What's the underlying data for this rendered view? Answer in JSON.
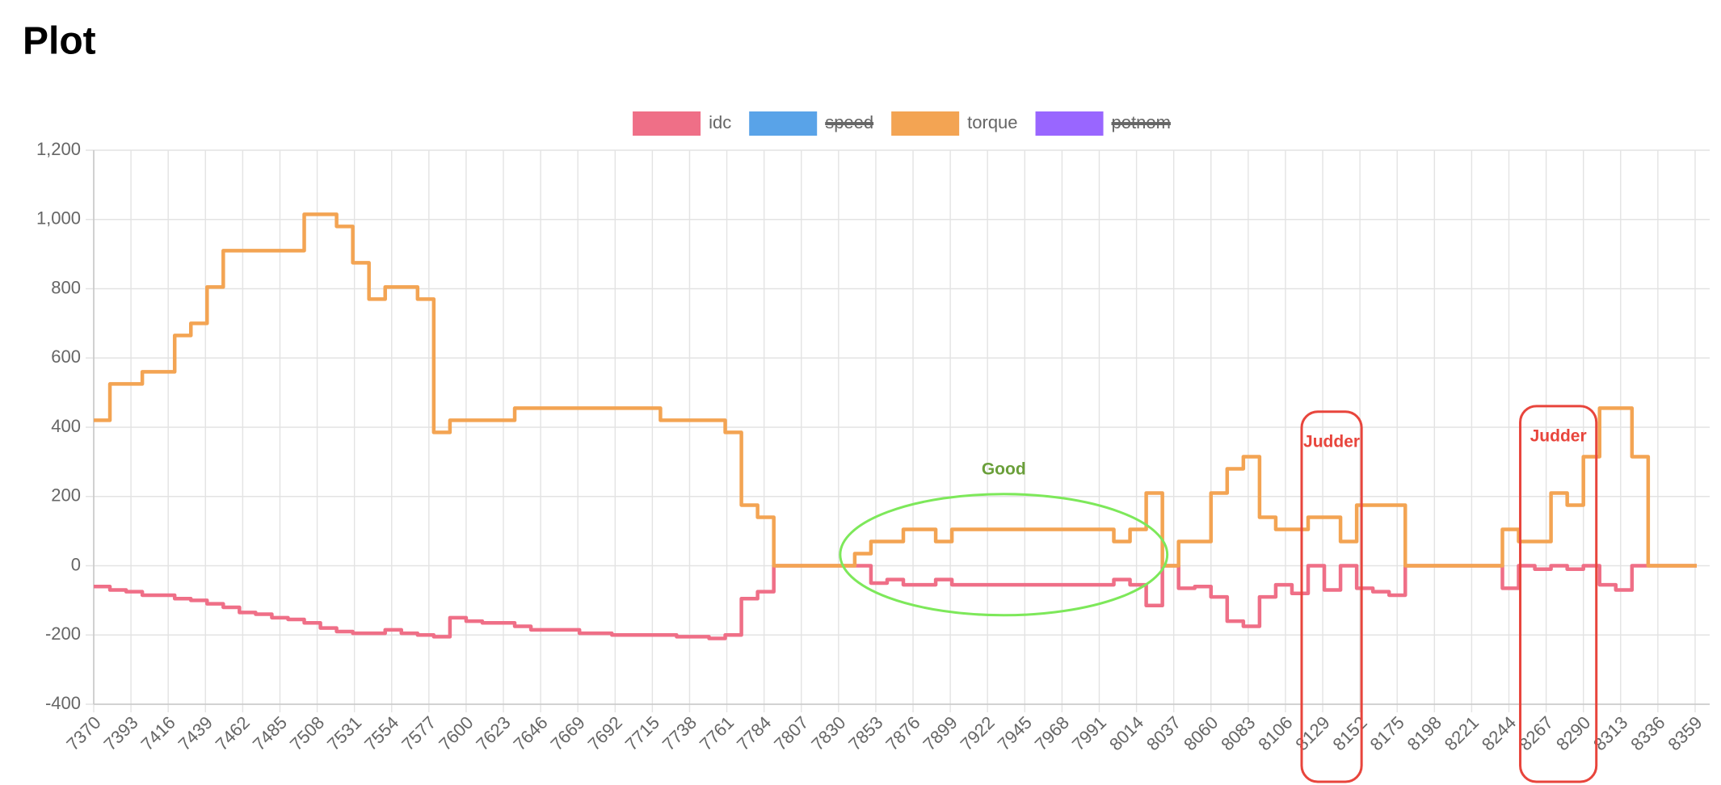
{
  "chart_data": {
    "type": "line",
    "title": "Plot",
    "stepped": true,
    "legend": "top",
    "grid": true,
    "x": [
      7370,
      7380,
      7390,
      7400,
      7410,
      7420,
      7430,
      7440,
      7450,
      7460,
      7470,
      7480,
      7490,
      7500,
      7510,
      7520,
      7530,
      7540,
      7550,
      7560,
      7570,
      7580,
      7590,
      7600,
      7610,
      7620,
      7630,
      7640,
      7650,
      7660,
      7670,
      7680,
      7690,
      7700,
      7710,
      7720,
      7730,
      7740,
      7750,
      7760,
      7770,
      7780,
      7790,
      7800,
      7810,
      7820,
      7830,
      7840,
      7850,
      7860,
      7870,
      7880,
      7890,
      7900,
      7910,
      7920,
      7930,
      7940,
      7950,
      7960,
      7970,
      7980,
      7990,
      8000,
      8010,
      8020,
      8030,
      8040,
      8050,
      8060,
      8070,
      8080,
      8090,
      8100,
      8110,
      8120,
      8130,
      8140,
      8150,
      8160,
      8170,
      8180,
      8190,
      8200,
      8210,
      8220,
      8230,
      8240,
      8250,
      8260,
      8270,
      8280,
      8290,
      8300,
      8310,
      8320,
      8330,
      8340,
      8350,
      8360
    ],
    "series": [
      {
        "name": "idc",
        "color": "#ef6f87",
        "values": [
          -60,
          -70,
          -75,
          -85,
          -85,
          -95,
          -100,
          -110,
          -120,
          -135,
          -140,
          -150,
          -155,
          -165,
          -180,
          -190,
          -195,
          -195,
          -185,
          -195,
          -200,
          -205,
          -150,
          -160,
          -165,
          -165,
          -175,
          -185,
          -185,
          -185,
          -195,
          -195,
          -200,
          -200,
          -200,
          -200,
          -205,
          -205,
          -210,
          -200,
          -95,
          -75,
          0,
          0,
          0,
          0,
          0,
          0,
          -50,
          -40,
          -55,
          -55,
          -40,
          -55,
          -55,
          -55,
          -55,
          -55,
          -55,
          -55,
          -55,
          -55,
          -55,
          -40,
          -55,
          -115,
          0,
          -65,
          -60,
          -90,
          -160,
          -175,
          -90,
          -55,
          -80,
          0,
          -70,
          0,
          -65,
          -75,
          -85,
          0,
          0,
          0,
          0,
          0,
          0,
          -65,
          0,
          -10,
          0,
          -10,
          0,
          -55,
          -70,
          0,
          0,
          0,
          0,
          0
        ]
      },
      {
        "name": "speed",
        "color": "#59a3e8",
        "hidden": true
      },
      {
        "name": "torque",
        "color": "#f3a453",
        "values": [
          420,
          525,
          525,
          560,
          560,
          665,
          700,
          805,
          910,
          910,
          910,
          910,
          910,
          1015,
          1015,
          980,
          875,
          770,
          805,
          805,
          770,
          385,
          420,
          420,
          420,
          420,
          455,
          455,
          455,
          455,
          455,
          455,
          455,
          455,
          455,
          420,
          420,
          420,
          420,
          385,
          175,
          140,
          0,
          0,
          0,
          0,
          0,
          35,
          70,
          70,
          105,
          105,
          70,
          105,
          105,
          105,
          105,
          105,
          105,
          105,
          105,
          105,
          105,
          70,
          105,
          210,
          0,
          70,
          70,
          210,
          280,
          315,
          140,
          105,
          105,
          140,
          140,
          70,
          175,
          175,
          175,
          0,
          0,
          0,
          0,
          0,
          0,
          105,
          70,
          70,
          210,
          175,
          315,
          455,
          455,
          315,
          0,
          0,
          0,
          0
        ]
      },
      {
        "name": "potnom",
        "color": "#9966ff",
        "hidden": true
      }
    ],
    "xlim": [
      7370,
      8368
    ],
    "xticks": [
      7370,
      7393,
      7416,
      7439,
      7462,
      7485,
      7508,
      7531,
      7554,
      7577,
      7600,
      7623,
      7646,
      7669,
      7692,
      7715,
      7738,
      7761,
      7784,
      7807,
      7830,
      7853,
      7876,
      7899,
      7922,
      7945,
      7968,
      7991,
      8014,
      8037,
      8060,
      8083,
      8106,
      8129,
      8152,
      8175,
      8198,
      8221,
      8244,
      8267,
      8290,
      8313,
      8336,
      8359
    ],
    "ylim": [
      -400,
      1200
    ],
    "yticks": [
      -400,
      -200,
      0,
      200,
      400,
      600,
      800,
      {
        "value": 1000,
        "label": "1,000"
      },
      {
        "value": 1200,
        "label": "1,200"
      }
    ],
    "annotations": [
      {
        "type": "ellipse",
        "label": "Good",
        "color": "#7de85a",
        "label_color": "#6a9f3a",
        "xlim": [
          7831,
          8033
        ],
        "ylim": [
          -143,
          207
        ]
      },
      {
        "type": "box",
        "label": "Judder",
        "color": "#e8453c",
        "xlim": [
          8116,
          8153
        ],
        "ymax": 445
      },
      {
        "type": "box",
        "label": "Judder",
        "color": "#e8453c",
        "xlim": [
          8251,
          8298
        ],
        "ymax": 461
      }
    ]
  }
}
